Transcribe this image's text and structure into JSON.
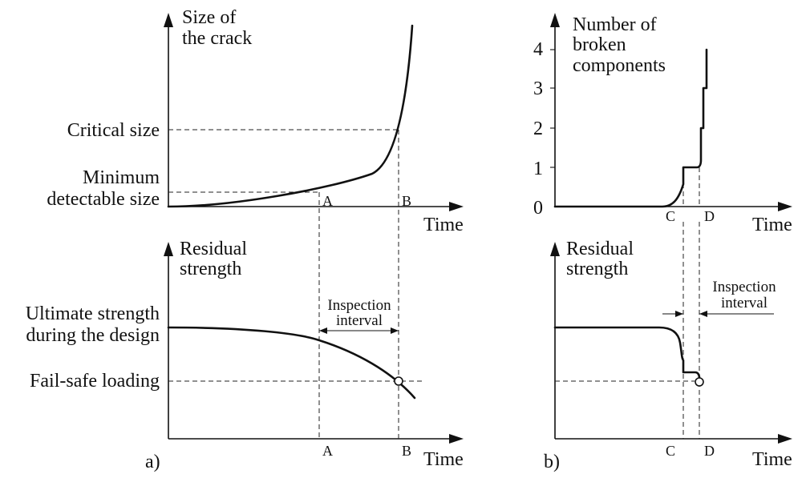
{
  "panel_a": {
    "caption": "a)",
    "top": {
      "y_title_line1": "Size of",
      "y_title_line2": "the crack",
      "critical_label": "Critical size",
      "minimum_label_line1": "Minimum",
      "minimum_label_line2": "detectable size",
      "x_label": "Time",
      "mark_a": "A",
      "mark_b": "B"
    },
    "bottom": {
      "y_title_line1": "Residual",
      "y_title_line2": "strength",
      "ultimate_line1": "Ultimate strength",
      "ultimate_line2": "during the design",
      "failsafe_label": "Fail-safe loading",
      "interval_line1": "Inspection",
      "interval_line2": "interval",
      "x_label": "Time",
      "mark_a": "A",
      "mark_b": "B"
    }
  },
  "panel_b": {
    "caption": "b)",
    "top": {
      "y_title_line1": "Number of",
      "y_title_line2": "broken",
      "y_title_line3": "components",
      "ticks": [
        "0",
        "1",
        "2",
        "3",
        "4"
      ],
      "x_label": "Time",
      "mark_c": "C",
      "mark_d": "D"
    },
    "bottom": {
      "y_title_line1": "Residual",
      "y_title_line2": "strength",
      "interval_line1": "Inspection",
      "interval_line2": "interval",
      "x_label": "Time",
      "mark_c": "C",
      "mark_d": "D"
    }
  },
  "colors": {
    "ink": "#111111",
    "background": "#ffffff"
  }
}
